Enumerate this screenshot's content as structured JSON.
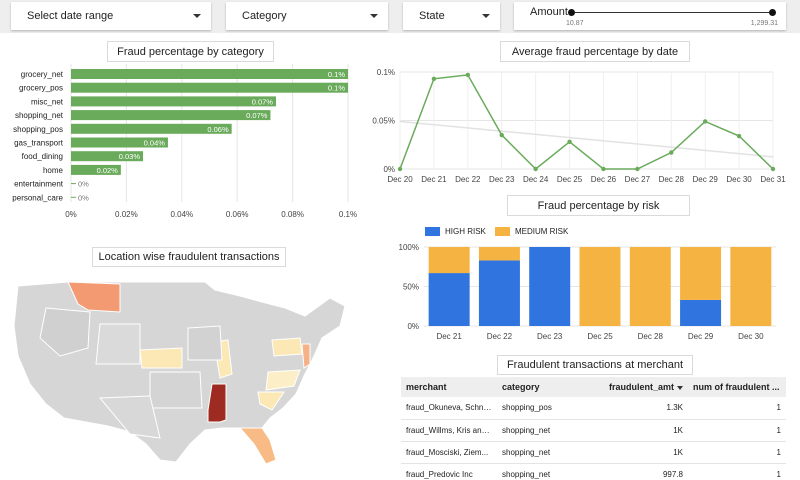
{
  "filters": {
    "date_range_label": "Select date range",
    "category_label": "Category",
    "state_label": "State",
    "amount_label": "Amount",
    "amount_min": "10.87",
    "amount_max": "1,299.31"
  },
  "colors": {
    "green": "#6aaa5b",
    "blue": "#2f74df",
    "orange": "#f5b342",
    "trend": "#e2e2e2"
  },
  "bar_chart": {
    "title": "Fraud percentage by category",
    "chart_data": {
      "type": "bar",
      "orientation": "horizontal",
      "title": "Fraud percentage by category",
      "categories": [
        "grocery_net",
        "grocery_pos",
        "misc_net",
        "shopping_net",
        "shopping_pos",
        "gas_transport",
        "food_dining",
        "home",
        "entertainment",
        "personal_care"
      ],
      "values": [
        0.1,
        0.1,
        0.074,
        0.072,
        0.058,
        0.035,
        0.026,
        0.018,
        0.0,
        0.0
      ],
      "labels": [
        "0.1%",
        "0.1%",
        "0.07%",
        "0.07%",
        "0.06%",
        "0.04%",
        "0.03%",
        "0.02%",
        "0%",
        "0%"
      ],
      "xlim": [
        0,
        0.1
      ],
      "xticks": [
        "0%",
        "0.02%",
        "0.04%",
        "0.06%",
        "0.08%",
        "0.1%"
      ]
    }
  },
  "line_chart": {
    "title": "Average fraud percentage by date",
    "chart_data": {
      "type": "line",
      "title": "Average fraud percentage by date",
      "categories": [
        "Dec 20",
        "Dec 21",
        "Dec 22",
        "Dec 23",
        "Dec 24",
        "Dec 25",
        "Dec 26",
        "Dec 27",
        "Dec 28",
        "Dec 29",
        "Dec 30",
        "Dec 31"
      ],
      "values": [
        0.0,
        0.093,
        0.097,
        0.035,
        0.0,
        0.028,
        0.0,
        0.0,
        0.017,
        0.049,
        0.034,
        0.0
      ],
      "trend": [
        0.049,
        0.0125
      ],
      "ylim": [
        0,
        0.1
      ],
      "yticks": [
        "0%",
        "0.05%",
        "0.1%"
      ]
    }
  },
  "stacked_chart": {
    "title": "Fraud percentage by risk",
    "chart_data": {
      "type": "bar",
      "stacked": true,
      "title": "Fraud percentage by risk",
      "categories": [
        "Dec 21",
        "Dec 22",
        "Dec 23",
        "Dec 25",
        "Dec 28",
        "Dec 29",
        "Dec 30"
      ],
      "series": [
        {
          "name": "HIGH RISK",
          "values": [
            67,
            83,
            100,
            0,
            0,
            33,
            0
          ]
        },
        {
          "name": "MEDIUM RISK",
          "values": [
            33,
            17,
            0,
            100,
            100,
            67,
            100
          ]
        }
      ],
      "ylim": [
        0,
        100
      ],
      "yticks": [
        "0%",
        "50%",
        "100%"
      ]
    }
  },
  "map": {
    "title": "Location wise fraudulent transactions"
  },
  "table": {
    "title": "Fraudulent transactions at merchant",
    "columns": [
      "merchant",
      "category",
      "fraudulent_amt",
      "num of fraudulent ..."
    ],
    "rows": [
      [
        "fraud_Okuneva, Schne...",
        "shopping_pos",
        "1.3K",
        "1"
      ],
      [
        "fraud_Willms, Kris and...",
        "shopping_net",
        "1K",
        "1"
      ],
      [
        "fraud_Mosciski, Ziem...",
        "shopping_net",
        "1K",
        "1"
      ],
      [
        "fraud_Predovic Inc",
        "shopping_net",
        "997.8",
        "1"
      ]
    ]
  }
}
